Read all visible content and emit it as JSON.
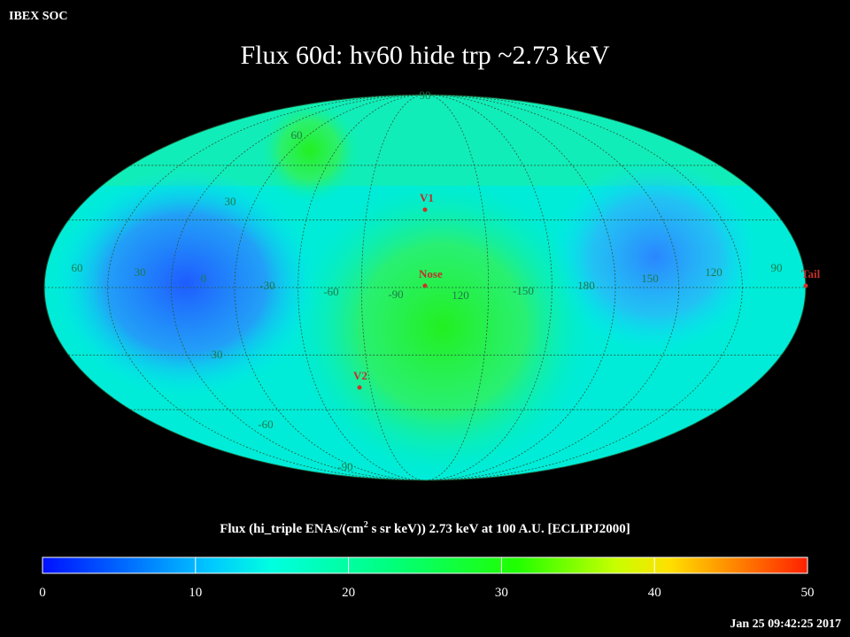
{
  "header": {
    "source": "IBEX SOC",
    "title": "Flux   60d: hv60 hide trp ~2.73 keV"
  },
  "map": {
    "latitude_labels": [
      "90",
      "60",
      "30",
      "30",
      "-60",
      "-90"
    ],
    "longitude_labels": [
      "60",
      "30",
      "0",
      "-30",
      "-60",
      "-90",
      "120",
      "-150",
      "180",
      "150",
      "120",
      "90"
    ],
    "markers": [
      "V1",
      "Nose",
      "V2",
      "Tail"
    ]
  },
  "colorbar": {
    "title_parts": [
      "Flux (hi_triple ENAs/(cm",
      "2",
      " s sr keV))  2.73 keV at 100 A.U. [ECLIPJ2000]"
    ],
    "lim": [
      0,
      50
    ],
    "ticks": [
      0,
      10,
      20,
      30,
      40,
      50
    ]
  },
  "timestamp": "Jan 25 09:42:25 2017"
}
